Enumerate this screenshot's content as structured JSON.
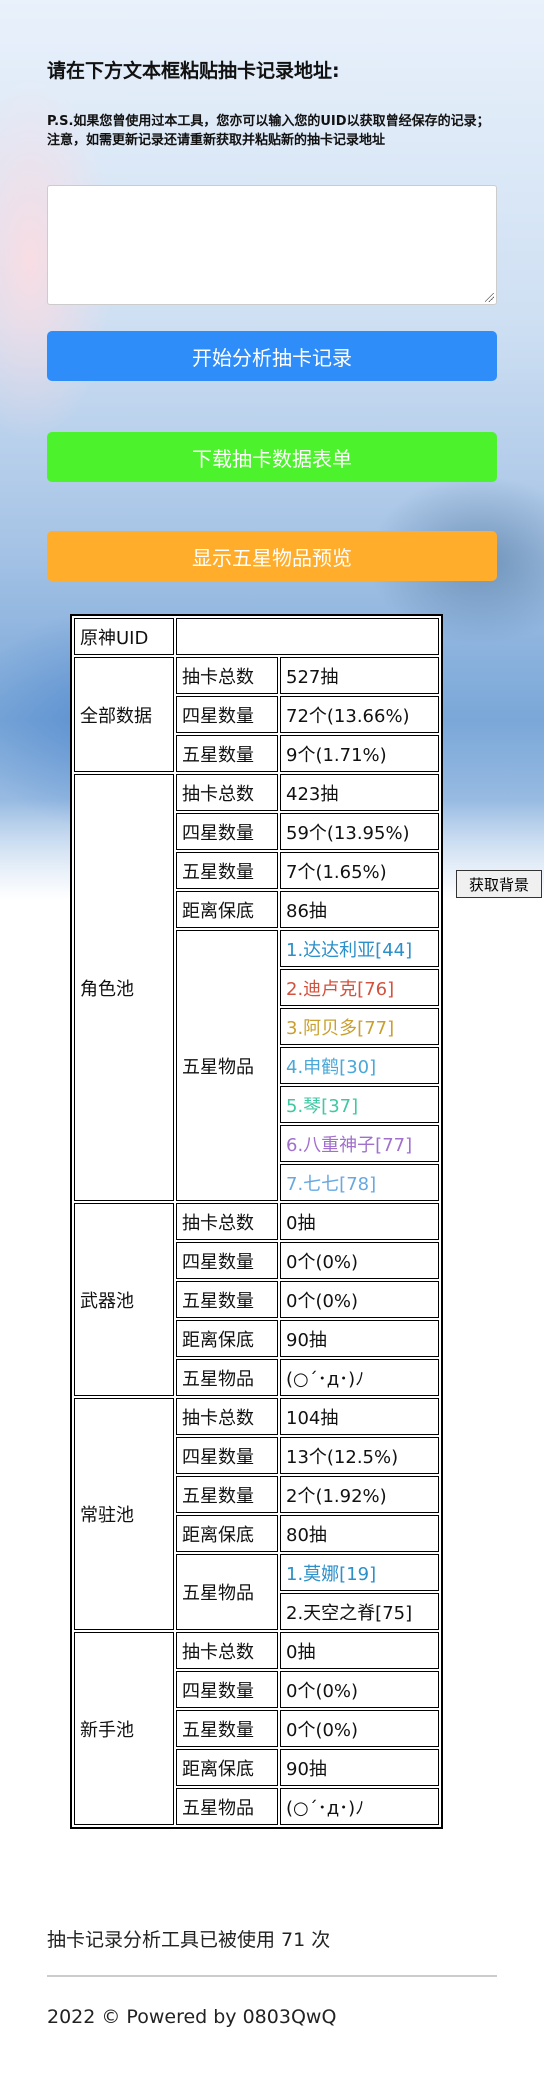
{
  "instructions": {
    "title": "请在下方文本框粘贴抽卡记录地址:",
    "note": "P.S.如果您曾使用过本工具，您亦可以输入您的UID以获取曾经保存的记录；注意，如需更新记录还请重新获取并粘贴新的抽卡记录地址",
    "textarea_value": ""
  },
  "buttons": {
    "analyze": "开始分析抽卡记录",
    "download": "下载抽卡数据表单",
    "preview": "显示五星物品预览",
    "get_background": "获取背景"
  },
  "colors": {
    "analyze": "#2f8dfa",
    "download": "#4cf22b",
    "preview": "#ffad2a",
    "item_blue": "#2b8fc9",
    "item_red": "#d1533f",
    "item_gold": "#c9a030",
    "item_lightblue": "#4aa8d8",
    "item_teal": "#3fc8a2",
    "item_purple": "#a070cc",
    "item_sky": "#68a8e0"
  },
  "table": {
    "uid_label": "原神UID",
    "uid_value": "",
    "labels": {
      "total": "抽卡总数",
      "four": "四星数量",
      "five": "五星数量",
      "pity": "距离保底",
      "items": "五星物品"
    },
    "all": {
      "name": "全部数据",
      "total": "527抽",
      "four": "72个(13.66%)",
      "five": "9个(1.71%)"
    },
    "character": {
      "name": "角色池",
      "total": "423抽",
      "four": "59个(13.95%)",
      "five": "7个(1.65%)",
      "pity": "86抽",
      "items": [
        "1.达达利亚[44]",
        "2.迪卢克[76]",
        "3.阿贝多[77]",
        "4.申鹤[30]",
        "5.琴[37]",
        "6.八重神子[77]",
        "7.七七[78]"
      ]
    },
    "weapon": {
      "name": "武器池",
      "total": "0抽",
      "four": "0个(0%)",
      "five": "0个(0%)",
      "pity": "90抽",
      "items_empty": "(○´･д･)ﾉ"
    },
    "standard": {
      "name": "常驻池",
      "total": "104抽",
      "four": "13个(12.5%)",
      "five": "2个(1.92%)",
      "pity": "80抽",
      "items": [
        "1.莫娜[19]",
        "2.天空之脊[75]"
      ]
    },
    "novice": {
      "name": "新手池",
      "total": "0抽",
      "four": "0个(0%)",
      "five": "0个(0%)",
      "pity": "90抽",
      "items_empty": "(○´･д･)ﾉ"
    }
  },
  "footer": {
    "usage": "抽卡记录分析工具已被使用 71 次",
    "copyright": "2022 © Powered by 0803QwQ"
  }
}
